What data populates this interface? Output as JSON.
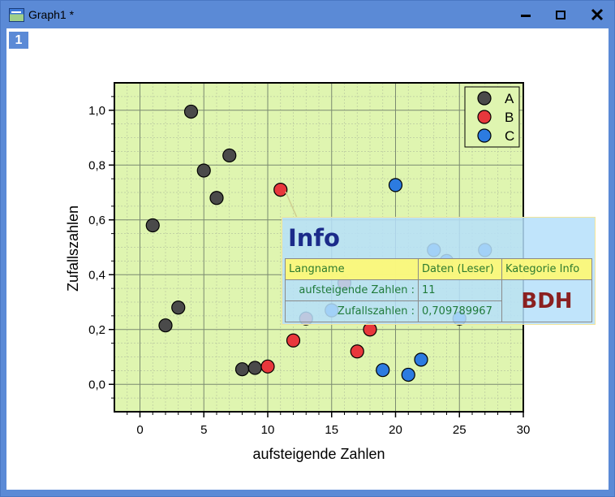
{
  "window": {
    "title": "Graph1 *",
    "layer_badge": "1"
  },
  "chart_data": {
    "type": "scatter",
    "xlabel": "aufsteigende Zahlen",
    "ylabel": "Zufallszahlen",
    "xlim": [
      -2,
      30
    ],
    "ylim": [
      -0.1,
      1.1
    ],
    "xticks": [
      0,
      5,
      10,
      15,
      20,
      25,
      30
    ],
    "yticks": [
      0.0,
      0.2,
      0.4,
      0.6,
      0.8,
      1.0
    ],
    "xtick_labels": [
      "0",
      "5",
      "10",
      "15",
      "20",
      "25",
      "30"
    ],
    "ytick_labels": [
      "0,0",
      "0,2",
      "0,4",
      "0,6",
      "0,8",
      "1,0"
    ],
    "grid": true,
    "background": "#dff5b0",
    "legend_position": "top-right",
    "series": [
      {
        "name": "A",
        "color": "#4a4a4a",
        "points": [
          [
            1,
            0.58
          ],
          [
            2,
            0.215
          ],
          [
            3,
            0.28
          ],
          [
            4,
            0.995
          ],
          [
            5,
            0.78
          ],
          [
            6,
            0.68
          ],
          [
            7,
            0.835
          ],
          [
            8,
            0.055
          ],
          [
            9,
            0.06
          ]
        ]
      },
      {
        "name": "B",
        "color": "#e8383c",
        "points": [
          [
            10,
            0.065
          ],
          [
            11,
            0.71
          ],
          [
            12,
            0.16
          ],
          [
            13,
            0.24
          ],
          [
            16,
            0.37
          ],
          [
            17,
            0.12
          ],
          [
            18,
            0.2
          ],
          [
            24,
            0.43
          ],
          [
            26,
            0.43
          ]
        ]
      },
      {
        "name": "C",
        "color": "#2c7be0",
        "points": [
          [
            15,
            0.27
          ],
          [
            19,
            0.052
          ],
          [
            20,
            0.727
          ],
          [
            21,
            0.035
          ],
          [
            22,
            0.09
          ],
          [
            23,
            0.49
          ],
          [
            24,
            0.45
          ],
          [
            25,
            0.24
          ],
          [
            27,
            0.49
          ]
        ]
      }
    ]
  },
  "tooltip": {
    "title": "Info",
    "col1_header": "Langname",
    "col2_header": "Daten (Leser)",
    "col3_header": "Kategorie Info",
    "row1_label": "aufsteigende Zahlen :",
    "row1_value": "11",
    "row2_label": "Zufallszahlen :",
    "row2_value": "0,709789967",
    "category": "BDH"
  }
}
